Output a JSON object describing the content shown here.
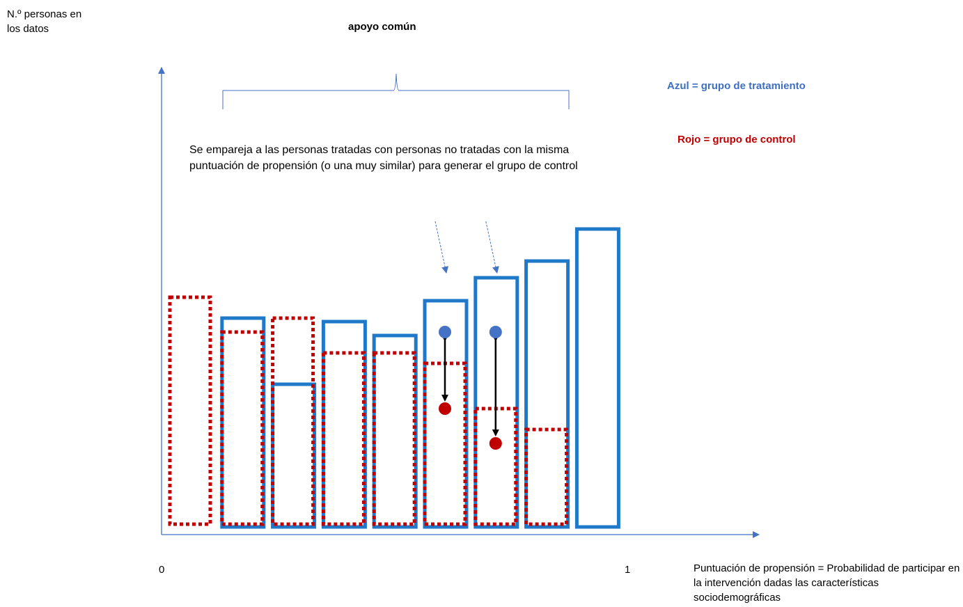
{
  "labels": {
    "y_axis": "N.º personas en\nlos datos",
    "common_support": "apoyo común",
    "legend_blue": "Azul = grupo de tratamiento",
    "legend_red": "Rojo = grupo de control",
    "note": "Se empareja a las personas tratadas con personas no tratadas con la misma puntuación de propensión (o una muy similar) para generar el grupo de control",
    "x_min": "0",
    "x_max": "1",
    "x_axis": "Puntuación de propensión = Probabilidad de participar en la intervención dadas las características sociodemográficas"
  },
  "colors": {
    "treatment": "#1f78c8",
    "control": "#c00000",
    "axis": "#4472c4",
    "dot_blue": "#4472c4",
    "dot_red": "#c00000",
    "arrow": "#000000"
  },
  "chart_data": {
    "type": "bar",
    "bins": 9,
    "series": [
      {
        "name": "Azul = grupo de tratamiento",
        "values": [
          null,
          300,
          205,
          295,
          275,
          325,
          358,
          382,
          428
        ]
      },
      {
        "name": "Rojo = grupo de control",
        "values": [
          330,
          280,
          300,
          250,
          250,
          235,
          170,
          140,
          null
        ]
      }
    ],
    "ylim": [
      0,
      450
    ],
    "matches": [
      {
        "bin": 5,
        "treated_value": 280,
        "control_value": 170
      },
      {
        "bin": 6,
        "treated_value": 280,
        "control_value": 120
      }
    ],
    "matched_bins": [
      5,
      6
    ],
    "common_support_bins": [
      1,
      7
    ]
  }
}
